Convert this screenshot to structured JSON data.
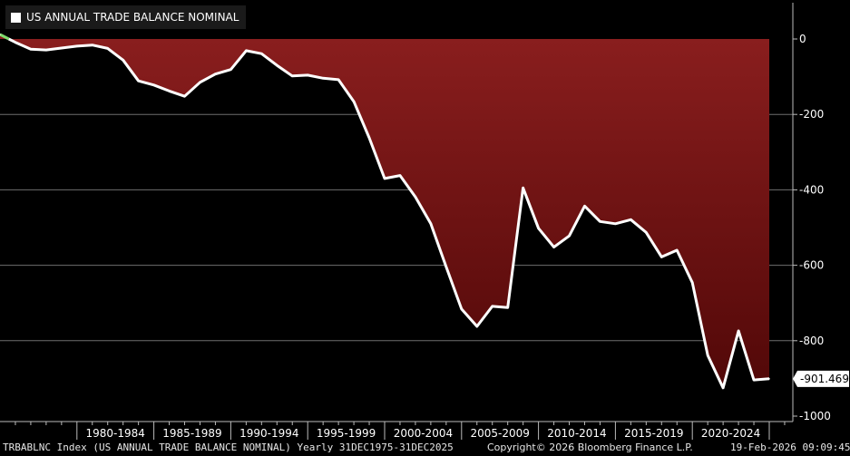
{
  "chart_data": {
    "type": "area",
    "title": "US ANNUAL TRADE BALANCE NOMINAL",
    "ylim": [
      -1000,
      0
    ],
    "yticks": [
      0,
      -200,
      -400,
      -600,
      -800,
      -1000
    ],
    "ytick_labels": [
      "0",
      "-200",
      "-400",
      "-600",
      "-800",
      "-1000"
    ],
    "x_categories": [
      "1980-1984",
      "1985-1989",
      "1990-1994",
      "1995-1999",
      "2000-2004",
      "2005-2009",
      "2010-2014",
      "2015-2019",
      "2020-2024"
    ],
    "grid": true,
    "last_value_label": "-901.469",
    "series": [
      {
        "x": [
          1975,
          1976,
          1977,
          1978,
          1979,
          1980,
          1981,
          1982,
          1983,
          1984,
          1985,
          1986,
          1987,
          1988,
          1989,
          1990,
          1991,
          1992,
          1993,
          1994,
          1995,
          1996,
          1997,
          1998,
          1999,
          2000,
          2001,
          2002,
          2003,
          2004,
          2005,
          2006,
          2007,
          2008,
          2009,
          2010,
          2011,
          2012,
          2013,
          2014,
          2015,
          2016,
          2017,
          2018,
          2019,
          2020,
          2021,
          2022,
          2023,
          2024,
          2025
        ],
        "values": [
          12,
          -9,
          -27,
          -29,
          -24,
          -19,
          -16,
          -25,
          -56,
          -111,
          -122,
          -138,
          -152,
          -115,
          -93,
          -81,
          -31,
          -39,
          -70,
          -98,
          -96,
          -104,
          -108,
          -166,
          -262,
          -370,
          -362,
          -419,
          -490,
          -604,
          -716,
          -762,
          -709,
          -712,
          -395,
          -502,
          -552,
          -522,
          -443,
          -484,
          -490,
          -479,
          -513,
          -578,
          -560,
          -646,
          -839,
          -925,
          -774,
          -904,
          -901
        ]
      }
    ],
    "colors": {
      "line": "#ffffff",
      "fill_top": "#8a1e1e",
      "fill_bottom": "#520808",
      "positive_line": "#7fdc6e",
      "grid": "#6e6e6e"
    }
  },
  "footer": {
    "source": "TRBABLNC Index (US ANNUAL TRADE BALANCE NOMINAL) Yearly 31DEC1975-31DEC2025",
    "copyright": "Copyright© 2026 Bloomberg Finance L.P.",
    "timestamp": "19-Feb-2026 09:09:45"
  }
}
